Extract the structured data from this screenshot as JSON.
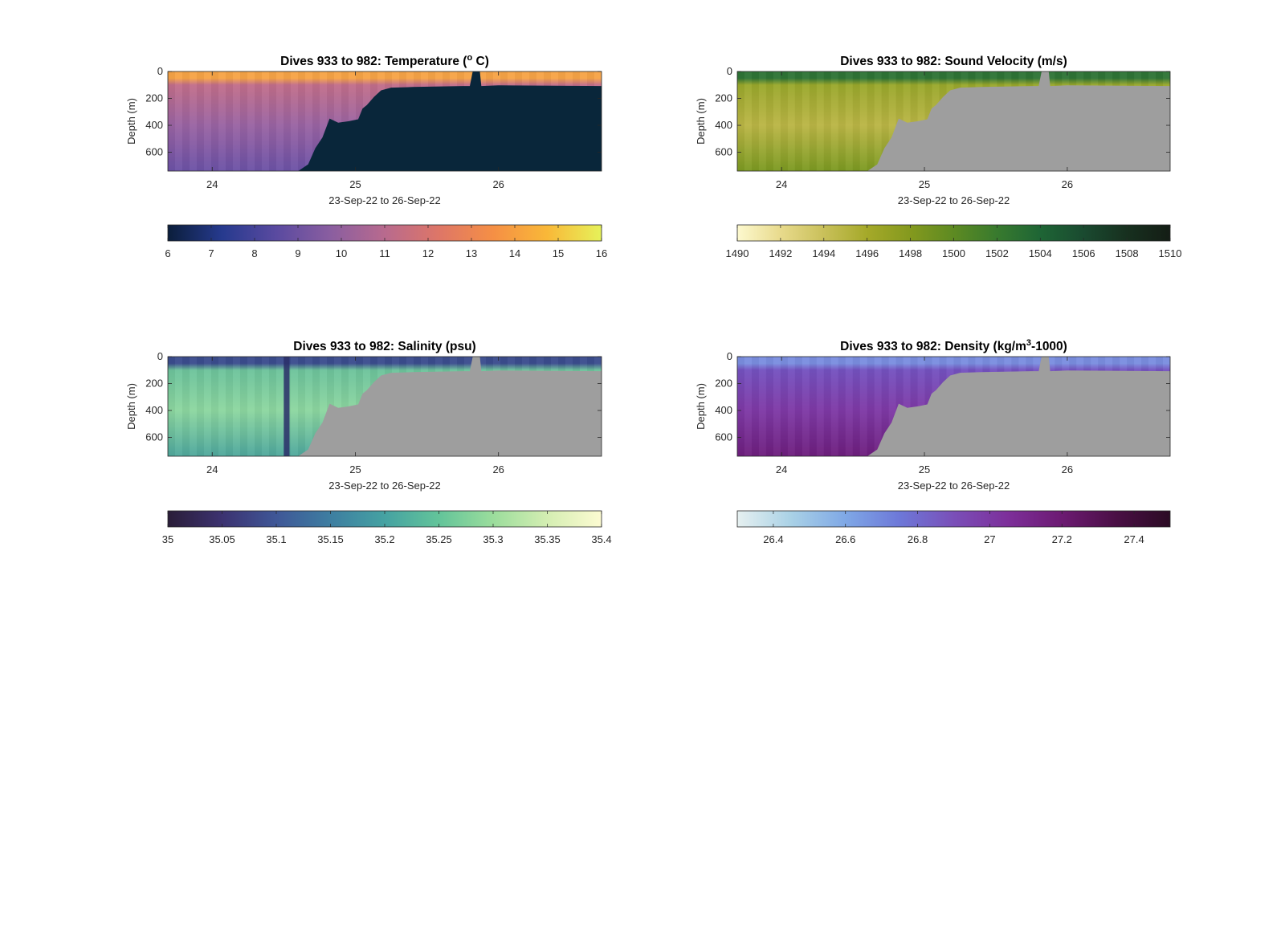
{
  "figure": {
    "background": "#ffffff"
  },
  "chart_data": [
    {
      "type": "heatmap",
      "title": "Dives 933 to 982: Temperature (° C)",
      "title_parts": [
        "Dives 933 to 982: Temperature (",
        "o",
        " C)"
      ],
      "ylabel": "Depth (m)",
      "xlabel": "23-Sep-22 to 26-Sep-22",
      "x_ticks": [
        24,
        25,
        26
      ],
      "xlim": [
        23.69,
        26.72
      ],
      "y_ticks": [
        0,
        200,
        400,
        600
      ],
      "ylim": [
        0,
        740
      ],
      "y_reversed": true,
      "colorbar": {
        "ticks": [
          6,
          7,
          8,
          9,
          10,
          11,
          12,
          13,
          14,
          15,
          16
        ],
        "tick_labels": [
          "6",
          "7",
          "8",
          "9",
          "10",
          "11",
          "12",
          "13",
          "14",
          "15",
          "16"
        ],
        "range": [
          6,
          16
        ],
        "colors": [
          "#0b1e3b",
          "#263a8e",
          "#5a4aa0",
          "#8a5ea0",
          "#b86a8e",
          "#de7667",
          "#f58f45",
          "#f9b838",
          "#e6f25a"
        ]
      },
      "missing_color": "#09263a",
      "mixed_layer": {
        "depth": 50,
        "color": "#f7a447"
      },
      "fields": [
        {
          "depth": 100,
          "color": "#c26e8a"
        },
        {
          "depth": 400,
          "color": "#9a64a3"
        },
        {
          "depth": 740,
          "color": "#6c52a6"
        }
      ],
      "bottom_profile": [
        [
          23.69,
          740
        ],
        [
          24.6,
          740
        ],
        [
          24.67,
          690
        ],
        [
          24.72,
          570
        ],
        [
          24.77,
          490
        ],
        [
          24.82,
          350
        ],
        [
          24.88,
          380
        ],
        [
          24.95,
          370
        ],
        [
          25.02,
          355
        ],
        [
          25.05,
          275
        ],
        [
          25.08,
          250
        ],
        [
          25.13,
          190
        ],
        [
          25.18,
          140
        ],
        [
          25.25,
          120
        ],
        [
          25.4,
          115
        ],
        [
          25.75,
          108
        ],
        [
          25.8,
          108
        ],
        [
          25.82,
          0
        ],
        [
          25.87,
          0
        ],
        [
          25.88,
          108
        ],
        [
          26.0,
          103
        ],
        [
          26.72,
          108
        ]
      ],
      "gaps": []
    },
    {
      "type": "heatmap",
      "title": "Dives 933 to 982: Sound Velocity (m/s)",
      "ylabel": "Depth (m)",
      "xlabel": "23-Sep-22 to 26-Sep-22",
      "x_ticks": [
        24,
        25,
        26
      ],
      "xlim": [
        23.69,
        26.72
      ],
      "y_ticks": [
        0,
        200,
        400,
        600
      ],
      "ylim": [
        0,
        740
      ],
      "y_reversed": true,
      "colorbar": {
        "ticks": [
          1490,
          1492,
          1494,
          1496,
          1498,
          1500,
          1502,
          1504,
          1506,
          1508,
          1510
        ],
        "tick_labels": [
          "1490",
          "1492",
          "1494",
          "1496",
          "1498",
          "1500",
          "1502",
          "1504",
          "1506",
          "1508",
          "1510"
        ],
        "range": [
          1490,
          1510
        ],
        "colors": [
          "#fdf9cf",
          "#e8da8c",
          "#c9c05a",
          "#a5a929",
          "#84991e",
          "#5d8a22",
          "#387a2e",
          "#1e6535",
          "#1a4a30",
          "#17301f",
          "#141d15"
        ]
      },
      "missing_color": "#9e9e9e",
      "mixed_layer": {
        "depth": 50,
        "color": "#2f7536"
      },
      "fields": [
        {
          "depth": 100,
          "color": "#9aa82c"
        },
        {
          "depth": 400,
          "color": "#bbb646"
        },
        {
          "depth": 740,
          "color": "#7c9a22"
        }
      ],
      "bottom_profile": [
        [
          23.69,
          740
        ],
        [
          24.6,
          740
        ],
        [
          24.67,
          690
        ],
        [
          24.72,
          570
        ],
        [
          24.77,
          490
        ],
        [
          24.82,
          350
        ],
        [
          24.88,
          380
        ],
        [
          24.95,
          370
        ],
        [
          25.02,
          355
        ],
        [
          25.05,
          275
        ],
        [
          25.08,
          250
        ],
        [
          25.13,
          190
        ],
        [
          25.18,
          140
        ],
        [
          25.25,
          120
        ],
        [
          25.4,
          115
        ],
        [
          25.75,
          108
        ],
        [
          25.8,
          108
        ],
        [
          25.82,
          0
        ],
        [
          25.87,
          0
        ],
        [
          25.88,
          108
        ],
        [
          26.0,
          103
        ],
        [
          26.72,
          108
        ]
      ],
      "gaps": []
    },
    {
      "type": "heatmap",
      "title": "Dives 933 to 982: Salinity (psu)",
      "ylabel": "Depth (m)",
      "xlabel": "23-Sep-22 to 26-Sep-22",
      "x_ticks": [
        24,
        25,
        26
      ],
      "xlim": [
        23.69,
        26.72
      ],
      "y_ticks": [
        0,
        200,
        400,
        600
      ],
      "ylim": [
        0,
        740
      ],
      "y_reversed": true,
      "colorbar": {
        "ticks": [
          35,
          35.05,
          35.1,
          35.15,
          35.2,
          35.25,
          35.3,
          35.35,
          35.4
        ],
        "tick_labels": [
          "35",
          "35.05",
          "35.1",
          "35.15",
          "35.2",
          "35.25",
          "35.3",
          "35.35",
          "35.4"
        ],
        "range": [
          35,
          35.4
        ],
        "colors": [
          "#2a1d38",
          "#3c3270",
          "#3f5797",
          "#3e7ea1",
          "#45a2a2",
          "#63c49a",
          "#9bdd9c",
          "#d4eeb2",
          "#fdfbd2"
        ]
      },
      "missing_color": "#9e9e9e",
      "mixed_layer": {
        "depth": 50,
        "color": "#3c4d8f"
      },
      "fields": [
        {
          "depth": 100,
          "color": "#6dc39c"
        },
        {
          "depth": 400,
          "color": "#8dd7a0"
        },
        {
          "depth": 740,
          "color": "#4fa89d"
        }
      ],
      "bottom_profile": [
        [
          23.69,
          740
        ],
        [
          24.6,
          740
        ],
        [
          24.67,
          690
        ],
        [
          24.72,
          570
        ],
        [
          24.77,
          490
        ],
        [
          24.82,
          350
        ],
        [
          24.88,
          380
        ],
        [
          24.95,
          370
        ],
        [
          25.02,
          355
        ],
        [
          25.05,
          275
        ],
        [
          25.08,
          250
        ],
        [
          25.13,
          190
        ],
        [
          25.18,
          140
        ],
        [
          25.25,
          120
        ],
        [
          25.4,
          115
        ],
        [
          25.75,
          108
        ],
        [
          25.8,
          108
        ],
        [
          25.82,
          0
        ],
        [
          25.87,
          0
        ],
        [
          25.88,
          108
        ],
        [
          26.0,
          103
        ],
        [
          26.72,
          108
        ]
      ],
      "gaps": [
        [
          24.5,
          24.54
        ]
      ]
    },
    {
      "type": "heatmap",
      "title": "Dives 933 to 982: Density (kg/m³-1000)",
      "title_parts": [
        "Dives 933 to 982: Density (kg/m",
        "3",
        "-1000)"
      ],
      "ylabel": "Depth (m)",
      "xlabel": "23-Sep-22 to 26-Sep-22",
      "x_ticks": [
        24,
        25,
        26
      ],
      "xlim": [
        23.69,
        26.72
      ],
      "y_ticks": [
        0,
        200,
        400,
        600
      ],
      "ylim": [
        0,
        740
      ],
      "y_reversed": true,
      "colorbar": {
        "ticks": [
          26.4,
          26.6,
          26.8,
          27,
          27.2,
          27.4
        ],
        "tick_labels": [
          "26.4",
          "26.6",
          "26.8",
          "27",
          "27.2",
          "27.4"
        ],
        "range": [
          26.3,
          27.5
        ],
        "colors": [
          "#e6f0f0",
          "#a9d1e6",
          "#7fa8e6",
          "#6d78d8",
          "#7a4fb8",
          "#7d2f9a",
          "#6c1a72",
          "#4a0f45",
          "#2b0b24"
        ]
      },
      "missing_color": "#9e9e9e",
      "mixed_layer": {
        "depth": 50,
        "color": "#7b8fe0"
      },
      "fields": [
        {
          "depth": 100,
          "color": "#7552c0"
        },
        {
          "depth": 400,
          "color": "#7f3aa6"
        },
        {
          "depth": 740,
          "color": "#6e1f7e"
        }
      ],
      "bottom_profile": [
        [
          23.69,
          740
        ],
        [
          24.6,
          740
        ],
        [
          24.67,
          690
        ],
        [
          24.72,
          570
        ],
        [
          24.77,
          490
        ],
        [
          24.82,
          350
        ],
        [
          24.88,
          380
        ],
        [
          24.95,
          370
        ],
        [
          25.02,
          355
        ],
        [
          25.05,
          275
        ],
        [
          25.08,
          250
        ],
        [
          25.13,
          190
        ],
        [
          25.18,
          140
        ],
        [
          25.25,
          120
        ],
        [
          25.4,
          115
        ],
        [
          25.75,
          108
        ],
        [
          25.8,
          108
        ],
        [
          25.82,
          0
        ],
        [
          25.87,
          0
        ],
        [
          25.88,
          108
        ],
        [
          26.0,
          103
        ],
        [
          26.72,
          108
        ]
      ],
      "gaps": []
    }
  ]
}
